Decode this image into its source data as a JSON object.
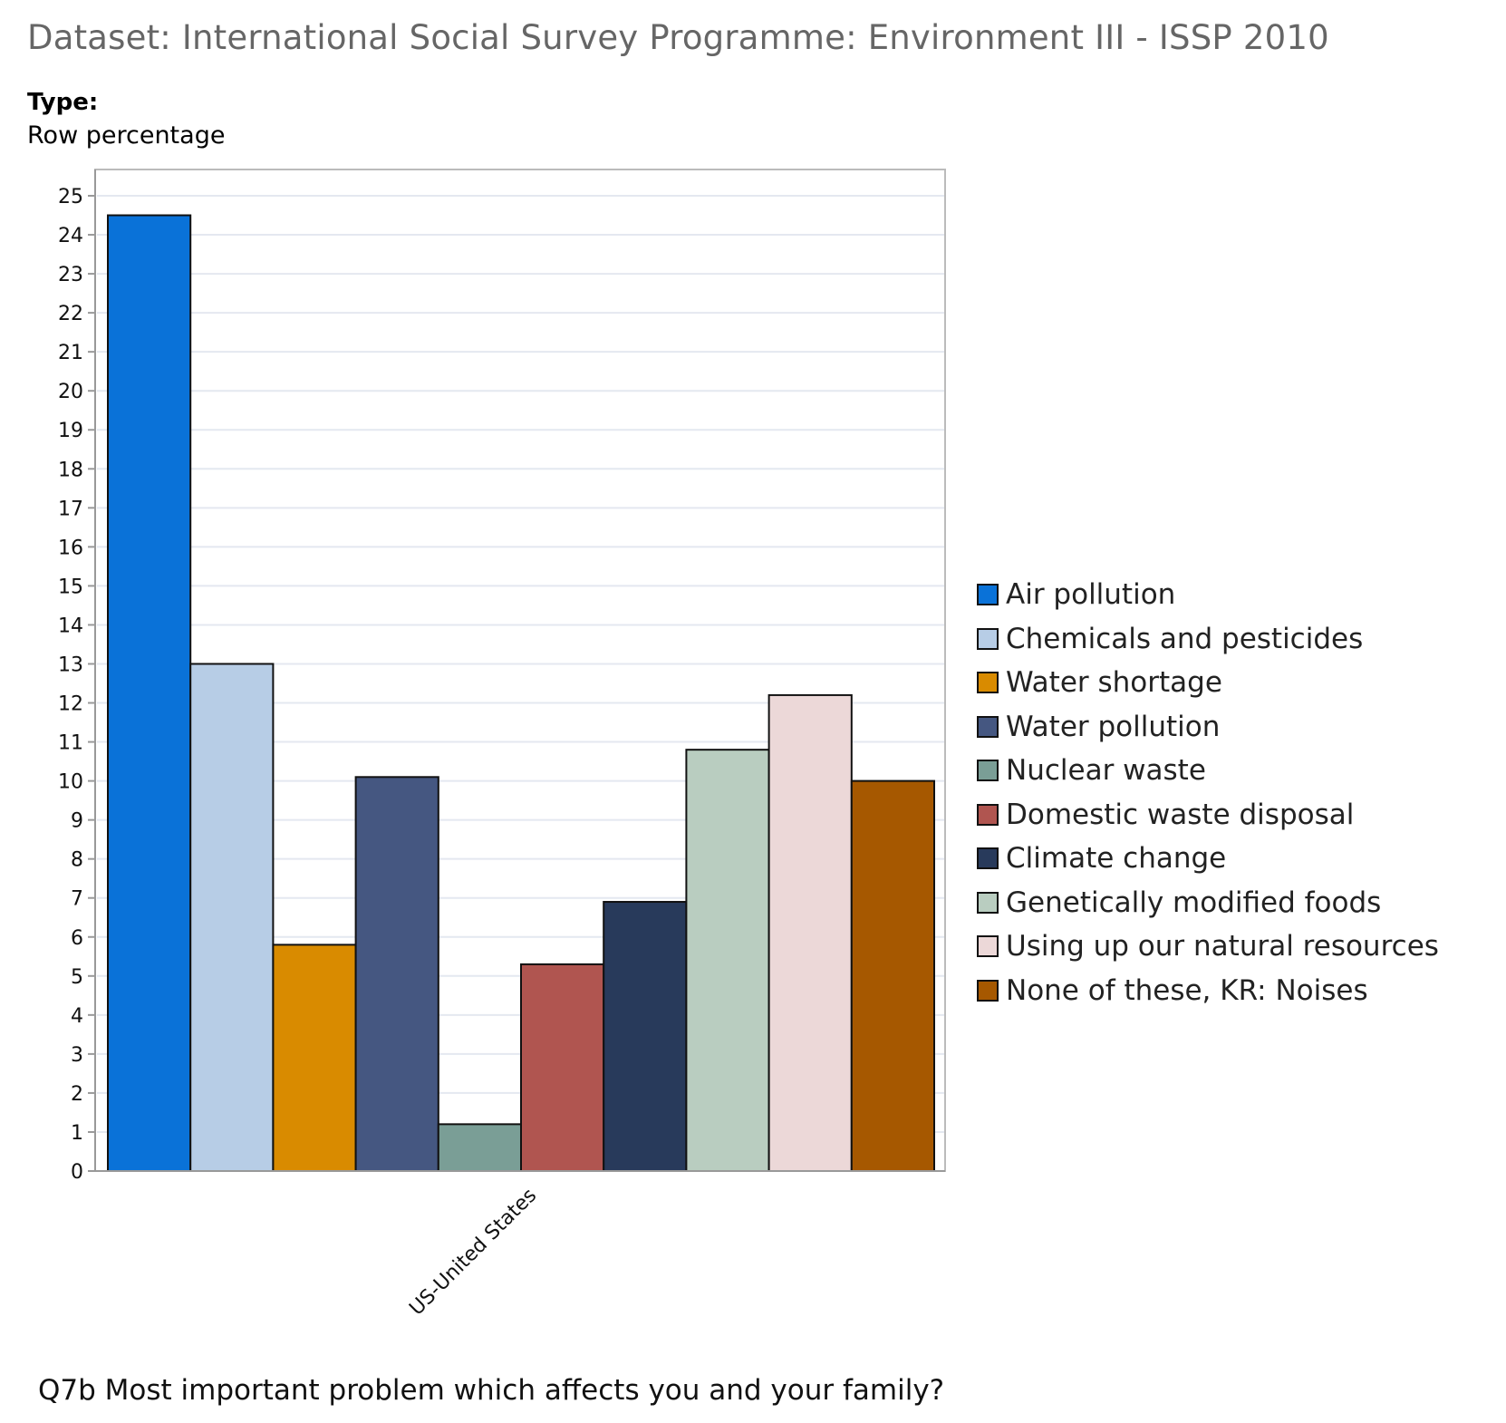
{
  "header": {
    "title": "Dataset: International Social Survey Programme: Environment III - ISSP 2010",
    "type_label": "Type:",
    "type_value": "Row percentage"
  },
  "footer": {
    "question": "Q7b Most important problem which affects you and your family?"
  },
  "chart_data": {
    "type": "bar",
    "title": "",
    "xlabel": "",
    "ylabel": "",
    "categories": [
      "US-United States"
    ],
    "ylim": [
      0,
      25
    ],
    "yticks": [
      0,
      1,
      2,
      3,
      4,
      5,
      6,
      7,
      8,
      9,
      10,
      11,
      12,
      13,
      14,
      15,
      16,
      17,
      18,
      19,
      20,
      21,
      22,
      23,
      24,
      25
    ],
    "grid": true,
    "legend_position": "right",
    "series": [
      {
        "name": "Air pollution",
        "values": [
          24.5
        ],
        "color": "#0a72d8"
      },
      {
        "name": "Chemicals and pesticides",
        "values": [
          13.0
        ],
        "color": "#b7cde6"
      },
      {
        "name": "Water shortage",
        "values": [
          5.8
        ],
        "color": "#d98b00"
      },
      {
        "name": "Water pollution",
        "values": [
          10.1
        ],
        "color": "#455781"
      },
      {
        "name": "Nuclear waste",
        "values": [
          1.2
        ],
        "color": "#7a9e96"
      },
      {
        "name": "Domestic waste disposal",
        "values": [
          5.3
        ],
        "color": "#b05550"
      },
      {
        "name": "Climate change",
        "values": [
          6.9
        ],
        "color": "#283a5b"
      },
      {
        "name": "Genetically modified foods",
        "values": [
          10.8
        ],
        "color": "#b9cdc0"
      },
      {
        "name": "Using up our natural resources",
        "values": [
          12.2
        ],
        "color": "#ecd8d8"
      },
      {
        "name": "None of these, KR: Noises",
        "values": [
          10.0
        ],
        "color": "#a65800"
      }
    ]
  }
}
